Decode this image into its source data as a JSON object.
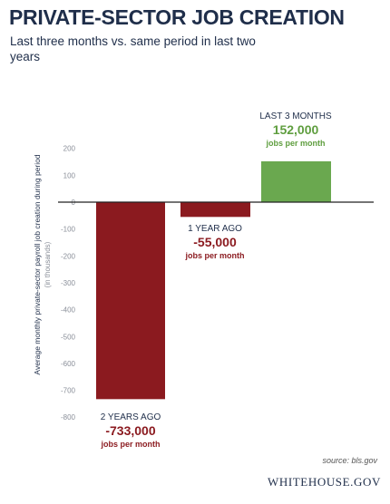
{
  "title": "PRIVATE-SECTOR JOB CREATION",
  "subtitle": "Last three months vs. same period in last two years",
  "source": "source: bls.gov",
  "footer": "WHITEHOUSE.GOV",
  "colors": {
    "negative_bar": "#8b1a1f",
    "positive_bar": "#6aa84f",
    "negative_text": "#8b1a1f",
    "positive_text": "#5f9e3f",
    "zero_line": "#222222",
    "grid": "#d9d9d9"
  },
  "chart_data": {
    "type": "bar",
    "categories": [
      "2 YEARS AGO",
      "1 YEAR AGO",
      "LAST 3 MONTHS"
    ],
    "values": [
      -733,
      -55,
      152
    ],
    "value_labels": [
      "-733,000",
      "-55,000",
      "152,000"
    ],
    "unit_label": "jobs per month",
    "ylabel": "Average monthly private-sector payroll job creation during period",
    "ylabel_sub": "(in thousands)",
    "yticks": [
      200,
      100,
      0,
      -100,
      -200,
      -300,
      -400,
      -500,
      -600,
      -700,
      -800
    ],
    "ylim": [
      -800,
      200
    ],
    "grid": false
  }
}
